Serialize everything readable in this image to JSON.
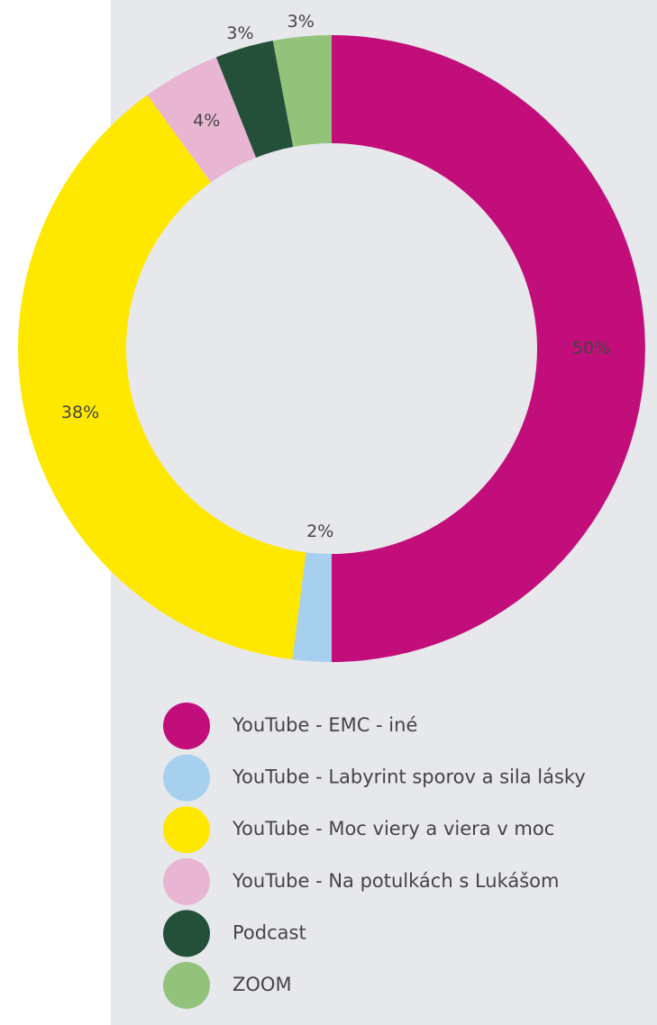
{
  "chart_data": {
    "type": "donut",
    "categories": [
      "YouTube - EMC - iné",
      "YouTube - Labyrint sporov a sila lásky",
      "YouTube - Moc viery a viera v moc",
      "YouTube - Na potulkách s Lukášom",
      "Podcast",
      "ZOOM"
    ],
    "values": [
      50,
      2,
      38,
      4,
      3,
      3
    ],
    "value_labels": [
      "50%",
      "2%",
      "38%",
      "4%",
      "3%",
      "3%"
    ],
    "colors": [
      "#c20e7a",
      "#a7cfee",
      "#ffe800",
      "#e8b6d3",
      "#245039",
      "#93c27a"
    ],
    "legend": "bottom"
  }
}
